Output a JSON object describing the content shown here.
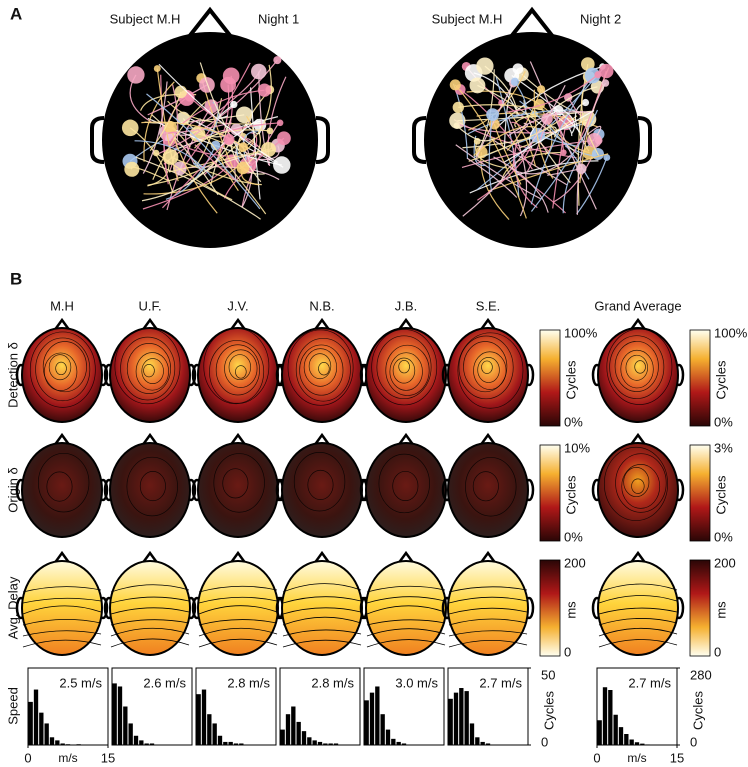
{
  "panel_a": {
    "label": "A",
    "heads": [
      {
        "subject": "Subject M.H",
        "night": "Night 1"
      },
      {
        "subject": "Subject M.H",
        "night": "Night 2"
      }
    ]
  },
  "panel_b": {
    "label": "B",
    "subjects": [
      "M.H",
      "U.F.",
      "J.V.",
      "N.B.",
      "J.B.",
      "S.E."
    ],
    "grand_average": "Grand Average",
    "rows": [
      "Detection δ",
      "Origin δ",
      "Avg. Delay",
      "Speed"
    ],
    "colorbars": [
      {
        "top": "100%",
        "bottom": "0%",
        "label": "Cycles"
      },
      {
        "top": "100%",
        "bottom": "0%",
        "label": "Cycles"
      },
      {
        "top": "10%",
        "bottom": "0%",
        "label": "Cycles"
      },
      {
        "top": "3%",
        "bottom": "0%",
        "label": "Cycles"
      },
      {
        "top": "200",
        "bottom": "0",
        "label": "ms"
      },
      {
        "top": "200",
        "bottom": "0",
        "label": "ms"
      }
    ]
  },
  "chart_data": [
    {
      "type": "histogram",
      "title": "2.5 m/s",
      "bins": [
        0,
        1,
        2,
        3,
        4,
        5,
        6,
        7,
        8,
        9,
        10,
        11,
        12,
        13,
        14,
        15
      ],
      "values": [
        28,
        36,
        21,
        14,
        5,
        3,
        1,
        0.5,
        0,
        0.5,
        0,
        0,
        0,
        0,
        0
      ],
      "color": "#000000",
      "xlim": [
        0,
        15
      ],
      "xticks": [
        0,
        15
      ],
      "xlabel": "m/s",
      "ylim": [
        0,
        50
      ]
    },
    {
      "type": "histogram",
      "title": "2.6 m/s",
      "bins": [
        0,
        1,
        2,
        3,
        4,
        5,
        6,
        7,
        8,
        9,
        10,
        11,
        12,
        13,
        14,
        15
      ],
      "values": [
        40,
        38,
        25,
        14,
        6,
        3,
        1,
        1,
        0,
        0,
        0,
        0,
        0,
        0,
        0
      ],
      "color": "#000000",
      "xlim": [
        0,
        15
      ],
      "ylim": [
        0,
        50
      ]
    },
    {
      "type": "histogram",
      "title": "2.8 m/s",
      "bins": [
        0,
        1,
        2,
        3,
        4,
        5,
        6,
        7,
        8,
        9,
        10,
        11,
        12,
        13,
        14,
        15
      ],
      "values": [
        33,
        36,
        20,
        14,
        6,
        2,
        2,
        1,
        1,
        0,
        0,
        0,
        0,
        0,
        0
      ],
      "color": "#000000",
      "xlim": [
        0,
        15
      ],
      "ylim": [
        0,
        50
      ]
    },
    {
      "type": "histogram",
      "title": "2.8 m/s",
      "bins": [
        0,
        1,
        2,
        3,
        4,
        5,
        6,
        7,
        8,
        9,
        10,
        11,
        12,
        13,
        14,
        15
      ],
      "values": [
        10,
        20,
        25,
        15,
        9,
        5,
        3,
        2,
        1,
        1,
        1,
        0,
        0,
        0,
        0
      ],
      "color": "#000000",
      "xlim": [
        0,
        15
      ],
      "ylim": [
        0,
        50
      ]
    },
    {
      "type": "histogram",
      "title": "3.0 m/s",
      "bins": [
        0,
        1,
        2,
        3,
        4,
        5,
        6,
        7,
        8,
        9,
        10,
        11,
        12,
        13,
        14,
        15
      ],
      "values": [
        29,
        34,
        38,
        20,
        10,
        4,
        2,
        1,
        0,
        0,
        0,
        0,
        0,
        0,
        0
      ],
      "color": "#000000",
      "xlim": [
        0,
        15
      ],
      "ylim": [
        0,
        50
      ]
    },
    {
      "type": "histogram",
      "title": "2.7 m/s",
      "bins": [
        0,
        1,
        2,
        3,
        4,
        5,
        6,
        7,
        8,
        9,
        10,
        11,
        12,
        13,
        14,
        15
      ],
      "values": [
        30,
        34,
        37,
        35,
        14,
        5,
        2,
        1,
        0,
        0,
        0,
        0,
        0,
        0,
        0
      ],
      "color": "#000000",
      "xlim": [
        0,
        15
      ],
      "ylim": [
        0,
        50
      ],
      "yticks": [
        0,
        50
      ],
      "ylabel": "Cycles"
    },
    {
      "type": "histogram",
      "title": "2.7 m/s",
      "bins": [
        0,
        1,
        2,
        3,
        4,
        5,
        6,
        7,
        8,
        9,
        10,
        11,
        12,
        13,
        14,
        15
      ],
      "values": [
        90,
        210,
        200,
        110,
        65,
        40,
        20,
        10,
        5,
        2,
        0,
        0,
        0,
        0,
        0
      ],
      "color": "#000000",
      "xlim": [
        0,
        15
      ],
      "xticks": [
        0,
        15
      ],
      "xlabel": "m/s",
      "ylim": [
        0,
        280
      ],
      "yticks": [
        0,
        280
      ],
      "ylabel": "Cycles"
    }
  ]
}
